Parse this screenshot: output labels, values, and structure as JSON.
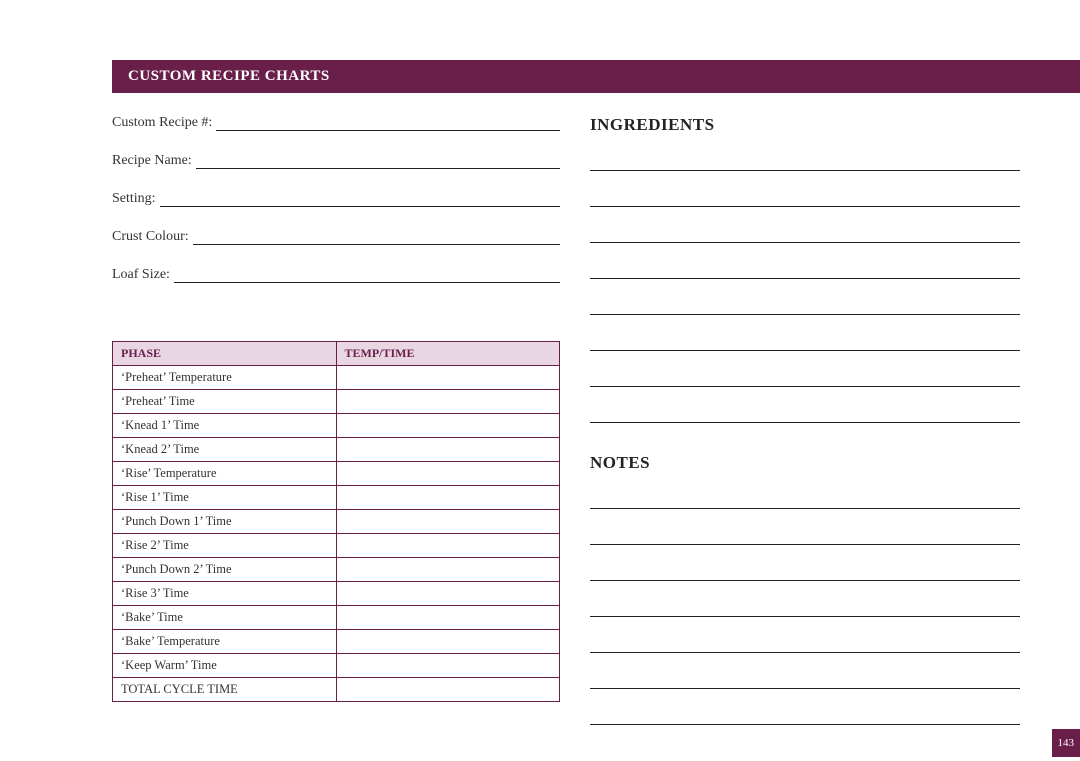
{
  "header_title": "CUSTOM RECIPE CHARTS",
  "page_number": "143",
  "fields": [
    {
      "label": "Custom Recipe #:"
    },
    {
      "label": "Recipe Name:"
    },
    {
      "label": "Setting:"
    },
    {
      "label": "Crust Colour:"
    },
    {
      "label": "Loaf Size:"
    }
  ],
  "ingredients_heading": "INGREDIENTS",
  "notes_heading": "NOTES",
  "ingredients_line_count": 8,
  "notes_line_count": 7,
  "phase_table": {
    "columns": [
      "PHASE",
      "TEMP/TIME"
    ],
    "rows": [
      "‘Preheat’ Temperature",
      "‘Preheat’ Time",
      "‘Knead 1’ Time",
      "‘Knead 2’ Time",
      "‘Rise’ Temperature",
      "‘Rise 1’ Time",
      "‘Punch Down 1’ Time",
      "‘Rise 2’ Time",
      "‘Punch Down 2’ Time",
      "‘Rise 3’ Time",
      "‘Bake’ Time",
      "‘Bake’ Temperature",
      "‘Keep Warm’ Time",
      "TOTAL CYCLE TIME"
    ]
  },
  "colors": {
    "brand": "#6a1e4a",
    "th_bg": "#e9d6e3",
    "text": "#333333",
    "line": "#222222"
  }
}
